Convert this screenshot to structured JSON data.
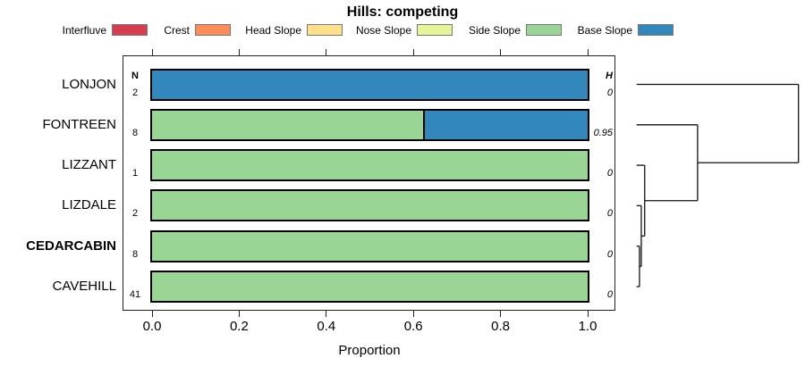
{
  "title": "Hills: competing",
  "columns": {
    "n_header": "N",
    "h_header": "H"
  },
  "x_axis": {
    "label": "Proportion",
    "ticks": [
      {
        "value": 0.0,
        "label": "0.0"
      },
      {
        "value": 0.2,
        "label": "0.2"
      },
      {
        "value": 0.4,
        "label": "0.4"
      },
      {
        "value": 0.6,
        "label": "0.6"
      },
      {
        "value": 0.8,
        "label": "0.8"
      },
      {
        "value": 1.0,
        "label": "1.0"
      }
    ]
  },
  "legend": {
    "items": [
      {
        "label": "Interfluve",
        "color": "#D53E4F"
      },
      {
        "label": "Crest",
        "color": "#FC8D59"
      },
      {
        "label": "Head Slope",
        "color": "#FEE08B"
      },
      {
        "label": "Nose Slope",
        "color": "#E6F598"
      },
      {
        "label": "Side Slope",
        "color": "#99D594"
      },
      {
        "label": "Base Slope",
        "color": "#3288BD"
      }
    ]
  },
  "chart_data": {
    "type": "bar",
    "orientation": "horizontal",
    "stacked": true,
    "title": "Hills: competing",
    "xlabel": "Proportion",
    "xlim": [
      0,
      1
    ],
    "categories": [
      "LONJON",
      "FONTREEN",
      "LIZZANT",
      "LIZDALE",
      "CEDARCABIN",
      "CAVEHILL"
    ],
    "bold_category": "CEDARCABIN",
    "n_values": [
      2,
      8,
      1,
      2,
      8,
      41
    ],
    "h_values": [
      "0",
      "0.95",
      "0",
      "0",
      "0",
      "0"
    ],
    "series": [
      {
        "name": "Interfluve",
        "color": "#D53E4F",
        "values": [
          0,
          0,
          0,
          0,
          0,
          0
        ]
      },
      {
        "name": "Crest",
        "color": "#FC8D59",
        "values": [
          0,
          0,
          0,
          0,
          0,
          0
        ]
      },
      {
        "name": "Head Slope",
        "color": "#FEE08B",
        "values": [
          0,
          0,
          0,
          0,
          0,
          0
        ]
      },
      {
        "name": "Nose Slope",
        "color": "#E6F598",
        "values": [
          0,
          0,
          0,
          0,
          0,
          0
        ]
      },
      {
        "name": "Side Slope",
        "color": "#99D594",
        "values": [
          0,
          0.625,
          1,
          1,
          1,
          1
        ]
      },
      {
        "name": "Base Slope",
        "color": "#3288BD",
        "values": [
          1,
          0.375,
          0,
          0,
          0,
          0
        ]
      }
    ],
    "dendrogram": {
      "leaf_order": [
        "LONJON",
        "FONTREEN",
        "LIZZANT",
        "LIZDALE",
        "CEDARCABIN",
        "CAVEHILL"
      ],
      "merges": [
        {
          "a": "CEDARCABIN",
          "b": "CAVEHILL",
          "height": 0.018
        },
        {
          "a": "merge0",
          "b": "LIZDALE",
          "height": 0.029
        },
        {
          "a": "merge1",
          "b": "LIZZANT",
          "height": 0.05
        },
        {
          "a": "merge2",
          "b": "FONTREEN",
          "height": 0.377
        },
        {
          "a": "merge3",
          "b": "LONJON",
          "height": 1.0
        }
      ]
    }
  }
}
